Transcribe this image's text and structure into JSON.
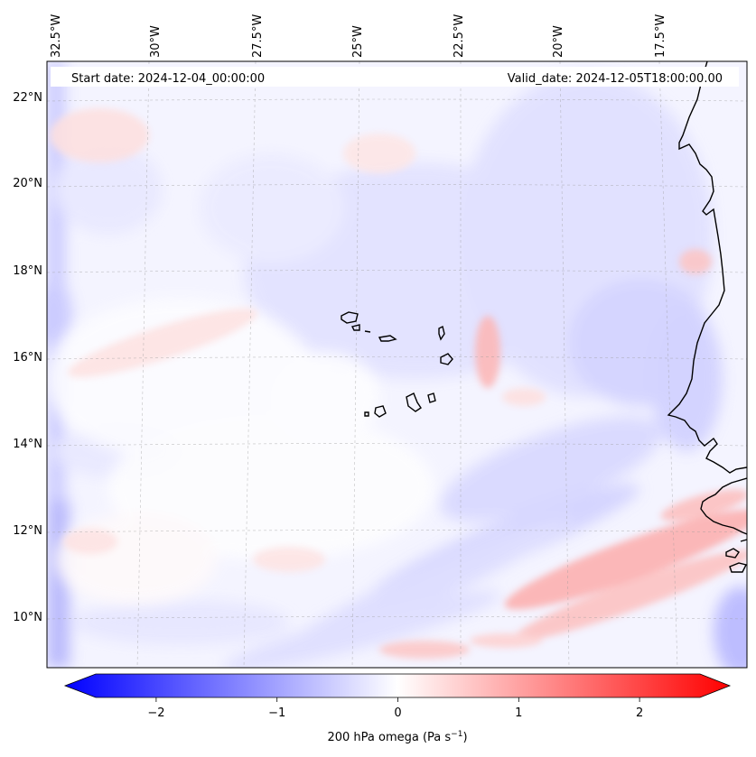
{
  "header": {
    "start_date": "Start date: 2024-12-04_00:00:00",
    "valid_date": "Valid_date: 2024-12-05T18:00:00.00"
  },
  "axes": {
    "lon_labels": [
      "32.5°W",
      "30°W",
      "27.5°W",
      "25°W",
      "22.5°W",
      "20°W",
      "17.5°W"
    ],
    "lat_labels": [
      "22°N",
      "20°N",
      "18°N",
      "16°N",
      "14°N",
      "12°N",
      "10°N"
    ]
  },
  "colorbar": {
    "tick_labels": [
      "−2",
      "−1",
      "0",
      "1",
      "2"
    ],
    "tick_values": [
      -2,
      -1,
      0,
      1,
      2
    ],
    "range": [
      -2.5,
      2.5
    ],
    "label_main": "200 hPa omega (Pa s",
    "label_exp": "−1",
    "label_end": ")",
    "colors": {
      "negative": "#0000ff",
      "neutral": "#ffffff",
      "positive": "#ff0000"
    }
  },
  "map": {
    "background": "#f7f7ff",
    "coastline_color": "#000000"
  }
}
